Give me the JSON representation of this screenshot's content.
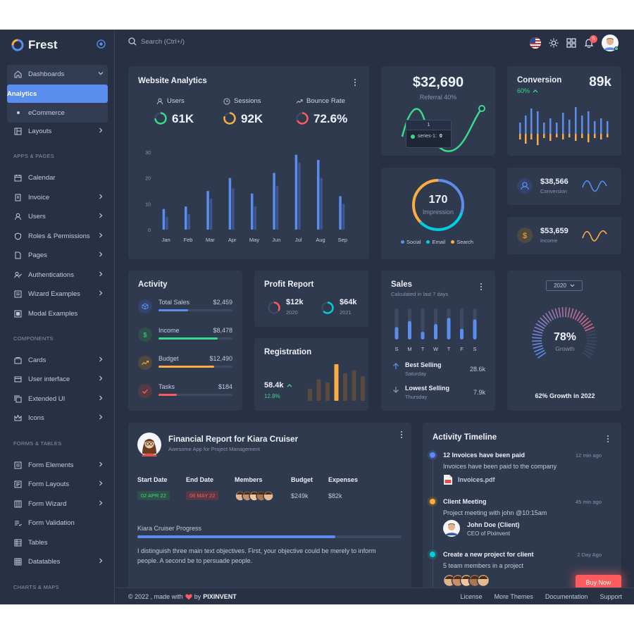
{
  "brand": {
    "name": "Frest"
  },
  "search": {
    "placeholder": "Search (Ctrl+/)"
  },
  "header": {
    "notification_count": "5"
  },
  "sidebar": {
    "dashboards": "Dashboards",
    "analytics": "Analytics",
    "ecommerce": "eCommerce",
    "layouts": "Layouts",
    "sec_apps": "APPS & PAGES",
    "calendar": "Calendar",
    "invoice": "Invoice",
    "users": "Users",
    "roles": "Roles & Permissions",
    "pages": "Pages",
    "auth": "Authentications",
    "wizard": "Wizard Examples",
    "modal": "Modal Examples",
    "sec_components": "COMPONENTS",
    "cards": "Cards",
    "ui": "User interface",
    "extended": "Extended UI",
    "icons": "Icons",
    "sec_forms": "FORMS & TABLES",
    "form_elements": "Form Elements",
    "form_layouts": "Form Layouts",
    "form_wizard": "Form Wizard",
    "form_validation": "Form Validation",
    "tables": "Tables",
    "datatables": "Datatables",
    "sec_charts": "CHARTS & MAPS"
  },
  "analytics": {
    "title": "Website Analytics",
    "stats": [
      {
        "label": "Users",
        "value": "61K",
        "color": "#39da8a"
      },
      {
        "label": "Sessions",
        "value": "92K",
        "color": "#fdac41"
      },
      {
        "label": "Bounce Rate",
        "value": "72.6%",
        "color": "#ff5b5c"
      }
    ],
    "chart_data": {
      "type": "bar",
      "categories": [
        "Jan",
        "Feb",
        "Mar",
        "Apr",
        "May",
        "Jun",
        "Jul",
        "Aug",
        "Sep"
      ],
      "series": [
        {
          "values": [
            8,
            9,
            15,
            20,
            14,
            22,
            29,
            27,
            13
          ]
        },
        {
          "values": [
            5,
            6,
            12,
            16,
            9,
            17,
            26,
            20,
            10
          ]
        }
      ],
      "yticks": [
        0,
        10,
        20,
        30
      ],
      "ylim": [
        0,
        30
      ]
    }
  },
  "referral": {
    "value": "$32,690",
    "label": "Referral 40%",
    "tooltip_x": "1",
    "tooltip_series": "series-1:",
    "tooltip_value": "0"
  },
  "conversion": {
    "title": "Conversion",
    "value": "89k",
    "percent": "60%"
  },
  "impression": {
    "value": "170",
    "label": "Impression",
    "legend": [
      "Social",
      "Email",
      "Search"
    ],
    "legend_colors": [
      "#5a8dee",
      "#00cfdd",
      "#fdac41"
    ]
  },
  "mini_stats": [
    {
      "value": "$38,566",
      "label": "Conversion",
      "color": "#5a8dee"
    },
    {
      "value": "$53,659",
      "label": "Income",
      "color": "#fdac41"
    }
  ],
  "activity": {
    "title": "Activity",
    "items": [
      {
        "label": "Total Sales",
        "value": "$2,459",
        "percent": 40,
        "color": "#5a8dee"
      },
      {
        "label": "Income",
        "value": "$8,478",
        "percent": 80,
        "color": "#39da8a"
      },
      {
        "label": "Budget",
        "value": "$12,490",
        "percent": 75,
        "color": "#fdac41"
      },
      {
        "label": "Tasks",
        "value": "$184",
        "percent": 25,
        "color": "#ff5b5c"
      }
    ]
  },
  "profit": {
    "title": "Profit Report",
    "items": [
      {
        "value": "$12k",
        "year": "2020",
        "color": "#ff5b5c"
      },
      {
        "value": "$64k",
        "year": "2021",
        "color": "#00cfdd"
      }
    ]
  },
  "registration": {
    "title": "Registration",
    "value": "58.4k",
    "percent": "12.8%",
    "bars": [
      4,
      7,
      6,
      12,
      9,
      10,
      8
    ]
  },
  "sales": {
    "title": "Sales",
    "subtitle": "Calculated in last 7 days",
    "days": [
      "S",
      "M",
      "T",
      "W",
      "T",
      "F",
      "S"
    ],
    "values": [
      40,
      60,
      25,
      50,
      70,
      35,
      65
    ],
    "best": {
      "title": "Best Selling",
      "day": "Saturday",
      "value": "28.6k"
    },
    "lowest": {
      "title": "Lowest Selling",
      "day": "Thursday",
      "value": "7.9k"
    }
  },
  "growth": {
    "year": "2020",
    "value": "78%",
    "label": "Growth",
    "caption": "62% Growth in 2022",
    "percent": 78
  },
  "financial": {
    "title": "Financial Report for Kiara Cruiser",
    "subtitle": "Awesome App for Project Management",
    "headers": {
      "start": "Start Date",
      "end": "End Date",
      "members": "Members",
      "budget": "Budget",
      "expenses": "Expenses"
    },
    "start": "02 APR 22",
    "end": "06 MAY 22",
    "budget": "$249k",
    "expenses": "$82k",
    "progress_label": "Kiara Cruiser Progress",
    "progress": 75,
    "text": "I distinguish three main text objectives. First, your objective could be merely to inform people. A second be to persuade people."
  },
  "timeline": {
    "title": "Activity Timeline",
    "items": [
      {
        "title": "12 Invoices have been paid",
        "time": "12 min ago",
        "desc": "Invoices have been paid to the company",
        "color": "#5a8dee"
      },
      {
        "title": "Client Meeting",
        "time": "45 min ago",
        "desc": "Project meeting with john @10:15am",
        "color": "#fdac41"
      },
      {
        "title": "Create a new project for client",
        "time": "2 Day Ago",
        "desc": "5 team members in a project",
        "color": "#00cfdd"
      }
    ],
    "file": "Invoices.pdf",
    "person": "John Doe (Client)",
    "person_role": "CEO of Pixinvent"
  },
  "buy_now": "Buy Now",
  "footer": {
    "copyright": "© 2022 , made with",
    "by": "by",
    "company": "PIXINVENT",
    "links": [
      "License",
      "More Themes",
      "Documentation",
      "Support"
    ]
  }
}
